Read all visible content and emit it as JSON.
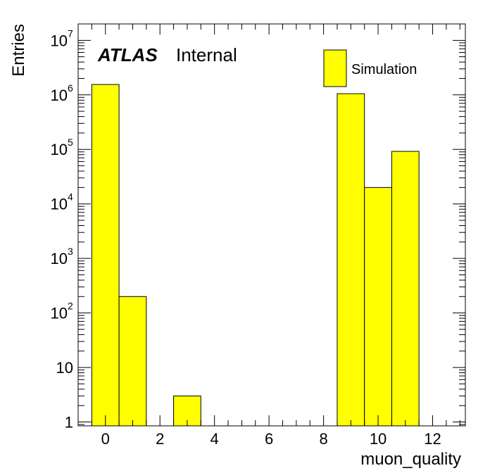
{
  "chart_data": {
    "type": "bar",
    "histogram": true,
    "xlabel": "muon_quality",
    "ylabel": "Entries",
    "xlim": [
      -1,
      13.2
    ],
    "ylim": [
      0.85,
      20000000
    ],
    "yscale": "log",
    "bin_width": 1,
    "x": [
      0,
      1,
      3,
      9,
      10,
      11
    ],
    "values": [
      1550000,
      200,
      3,
      1050000,
      20000,
      92000
    ],
    "x_ticks": [
      0,
      2,
      4,
      6,
      8,
      10,
      12
    ],
    "y_ticks": [
      {
        "value": 1,
        "base": "1",
        "exp": ""
      },
      {
        "value": 10,
        "base": "10",
        "exp": ""
      },
      {
        "value": 100,
        "base": "10",
        "exp": "2"
      },
      {
        "value": 1000,
        "base": "10",
        "exp": "3"
      },
      {
        "value": 10000,
        "base": "10",
        "exp": "4"
      },
      {
        "value": 100000,
        "base": "10",
        "exp": "5"
      },
      {
        "value": 1000000,
        "base": "10",
        "exp": "6"
      },
      {
        "value": 10000000,
        "base": "10",
        "exp": "7"
      }
    ],
    "fill_color": "#ffff00",
    "edge_color": "#000000",
    "legend": {
      "label": "Simulation",
      "position": "top-right"
    },
    "atlas_label": "ATLAS",
    "atlas_status": "Internal",
    "grid": false
  }
}
